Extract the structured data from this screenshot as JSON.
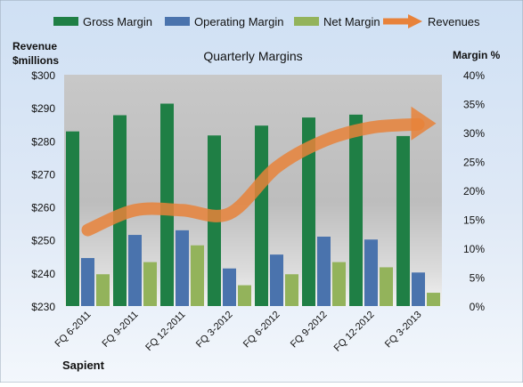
{
  "chart_data": {
    "type": "bar",
    "title": "Quarterly Margins",
    "left_axis_label_line1": "Revenue",
    "left_axis_label_line2": "$millions",
    "right_axis_label": "Margin %",
    "footer": "Sapient",
    "categories": [
      "FQ 6-2011",
      "FQ 9-2011",
      "FQ 12-2011",
      "FQ 3-2012",
      "FQ 6-2012",
      "FQ 9-2012",
      "FQ 12-2012",
      "FQ 3-2013"
    ],
    "left_axis": {
      "min": 230,
      "max": 300,
      "ticks": [
        "$230",
        "$240",
        "$250",
        "$260",
        "$270",
        "$280",
        "$290",
        "$300"
      ]
    },
    "right_axis": {
      "min": 0,
      "max": 40,
      "ticks": [
        "0%",
        "5%",
        "10%",
        "15%",
        "20%",
        "25%",
        "30%",
        "35%",
        "40%"
      ]
    },
    "series": [
      {
        "name": "Gross Margin",
        "type": "bar",
        "axis": "right",
        "color": "#1f7f45",
        "values": [
          30.2,
          33.0,
          35.0,
          29.5,
          31.2,
          32.6,
          33.1,
          29.4
        ]
      },
      {
        "name": "Operating Margin",
        "type": "bar",
        "axis": "right",
        "color": "#4a73ad",
        "values": [
          8.3,
          12.3,
          13.1,
          6.5,
          8.9,
          12.0,
          11.5,
          5.8
        ]
      },
      {
        "name": "Net Margin",
        "type": "bar",
        "axis": "right",
        "color": "#93b35b",
        "values": [
          5.5,
          7.6,
          10.5,
          3.6,
          5.5,
          7.6,
          6.7,
          2.3
        ]
      },
      {
        "name": "Revenues",
        "type": "line",
        "axis": "left",
        "color": "#e8823a",
        "values": [
          253,
          259,
          259,
          258,
          272,
          280,
          284,
          285
        ]
      }
    ],
    "grid": false,
    "legend_position": "top"
  }
}
